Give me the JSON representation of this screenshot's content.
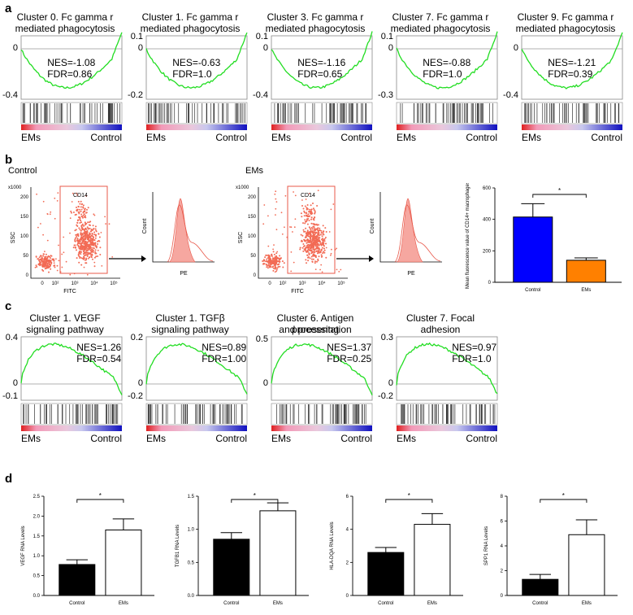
{
  "panels": {
    "a": "a",
    "b": "b",
    "c": "c",
    "d": "d"
  },
  "gsea_a": [
    {
      "line1": "Cluster 0. Fc gamma r",
      "line2": "mediated phagocytosis",
      "nes": "NES=-1.08",
      "fdr": "FDR=0.86",
      "ticks": [
        "0",
        "-0.4"
      ],
      "left": "EMs",
      "right": "Control"
    },
    {
      "line1": "Cluster 1. Fc gamma r",
      "line2": "mediated phagocytosis",
      "nes": "NES=-0.63",
      "fdr": "FDR=1.0",
      "ticks": [
        "0.1",
        "0",
        "-0.2"
      ],
      "left": "EMs",
      "right": "Control"
    },
    {
      "line1": "Cluster 3. Fc gamma r",
      "line2": "mediated phagocytosis",
      "nes": "NES=-1.16",
      "fdr": "FDR=0.65",
      "ticks": [
        "0.1",
        "0",
        "-0.4"
      ],
      "left": "EMs",
      "right": "Control"
    },
    {
      "line1": "Cluster 7. Fc gamma r",
      "line2": "mediated phagocytosis",
      "nes": "NES=-0.88",
      "fdr": "FDR=1.0",
      "ticks": [
        "0.1",
        "0",
        "-0.3"
      ],
      "left": "EMs",
      "right": "Control"
    },
    {
      "line1": "Cluster 9. Fc gamma r",
      "line2": "mediated phagocytosis",
      "nes": "NES=-1.21",
      "fdr": "FDR=0.39",
      "ticks": [
        "0",
        "-0.4"
      ],
      "left": "EMs",
      "right": "Control"
    }
  ],
  "gsea_c": [
    {
      "line1": "Cluster 1. VEGF",
      "line2": "signaling pathway",
      "nes": "NES=1.26",
      "fdr": "FDR=0.54",
      "ticks": [
        "0.4",
        "0",
        "-0.1"
      ],
      "left": "EMs",
      "right": "Control"
    },
    {
      "line1": "Cluster 1. TGFβ",
      "line2": "signaling pathway",
      "nes": "NES=0.89",
      "fdr": "FDR=1.00",
      "ticks": [
        "0.2",
        "0",
        "-0.2"
      ],
      "left": "EMs",
      "right": "Control"
    },
    {
      "line1": "Cluster 6. Antigen processing",
      "line2": "and presentation",
      "nes": "NES=1.37",
      "fdr": "FDR=0.25",
      "ticks": [
        "0.5",
        "0"
      ],
      "left": "EMs",
      "right": "Control"
    },
    {
      "line1": "Cluster 7. Focal",
      "line2": "adhesion",
      "nes": "NES=0.97",
      "fdr": "FDR=1.0",
      "ticks": [
        "0.3",
        "0",
        "-0.2"
      ],
      "left": "EMs",
      "right": "Control"
    }
  ],
  "flow": {
    "control_label": "Control",
    "ems_label": "EMs",
    "x1000": "x1000",
    "ssc": "SSC",
    "fitc": "FITC",
    "gate": "CD14",
    "count": "Count",
    "pe": "PE",
    "y_ticks": [
      "200",
      "150",
      "100",
      "50",
      "0"
    ],
    "x_ticks": [
      "0",
      "10²",
      "10³",
      "10⁴",
      "10⁵"
    ]
  },
  "chart_data": [
    {
      "type": "bar",
      "title": "",
      "ylabel": "Mean fluorescence value of CD14+ macrophages",
      "categories": [
        "Control",
        "EMs"
      ],
      "values": [
        415,
        140
      ],
      "errors": [
        85,
        15
      ],
      "ylim": [
        0,
        600
      ],
      "yticks": [
        "0",
        "200",
        "400",
        "600"
      ],
      "colors": [
        "#0000ff",
        "#ff8000"
      ],
      "significance": "*"
    },
    {
      "type": "bar",
      "ylabel": "VEGF RNA Levels",
      "categories": [
        "Control",
        "EMs"
      ],
      "values": [
        0.78,
        1.65
      ],
      "errors": [
        0.12,
        0.28
      ],
      "ylim": [
        0,
        2.5
      ],
      "yticks": [
        "0.0",
        "0.5",
        "1.0",
        "1.5",
        "2.0",
        "2.5"
      ],
      "significance": "*"
    },
    {
      "type": "bar",
      "ylabel": "TGFB1 RNA Levels",
      "categories": [
        "Control",
        "EMs"
      ],
      "values": [
        0.85,
        1.28
      ],
      "errors": [
        0.1,
        0.12
      ],
      "ylim": [
        0,
        1.5
      ],
      "yticks": [
        "0.0",
        "0.5",
        "1.0",
        "1.5"
      ],
      "significance": "*"
    },
    {
      "type": "bar",
      "ylabel": "HLA-DQA RNA Levels",
      "categories": [
        "Control",
        "EMs"
      ],
      "values": [
        2.6,
        4.3
      ],
      "errors": [
        0.3,
        0.65
      ],
      "ylim": [
        0,
        6
      ],
      "yticks": [
        "0",
        "2",
        "4",
        "6"
      ],
      "significance": "*"
    },
    {
      "type": "bar",
      "ylabel": "SPP1 RNA Levels",
      "categories": [
        "Control",
        "EMs"
      ],
      "values": [
        1.3,
        4.9
      ],
      "errors": [
        0.4,
        1.2
      ],
      "ylim": [
        0,
        8
      ],
      "yticks": [
        "0",
        "2",
        "4",
        "6",
        "8"
      ],
      "significance": "*"
    }
  ]
}
